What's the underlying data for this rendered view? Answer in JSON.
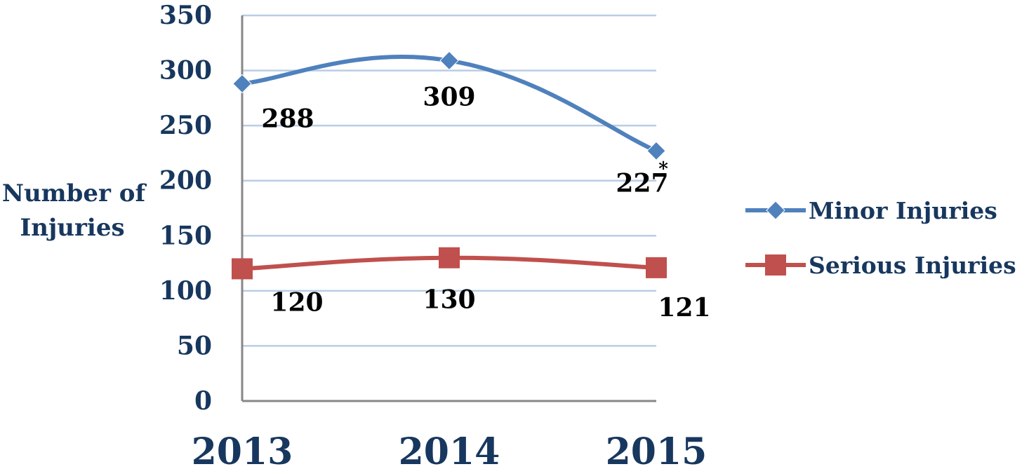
{
  "chart_data": {
    "type": "line",
    "categories": [
      "2013",
      "2014",
      "2015"
    ],
    "ylabel": [
      "Number of",
      "Injuries"
    ],
    "ylim": [
      0,
      350
    ],
    "yticks": [
      0,
      50,
      100,
      150,
      200,
      250,
      300,
      350
    ],
    "grid": true,
    "legend_position": "right",
    "series": [
      {
        "name": "Minor Injuries",
        "values": [
          288,
          309,
          227
        ],
        "data_labels": [
          "288",
          "309",
          "227"
        ],
        "color": "#4f81bd",
        "marker": "diamond"
      },
      {
        "name": "Serious Injuries",
        "values": [
          120,
          130,
          121
        ],
        "data_labels": [
          "120",
          "130",
          "121"
        ],
        "color": "#c0504d",
        "marker": "square"
      }
    ],
    "annotations": [
      {
        "text": "*",
        "series": 0,
        "index": 2
      }
    ]
  },
  "colors": {
    "axis_text": "#17375e",
    "gridline": "#b9cde5",
    "axis_line": "#878787"
  }
}
